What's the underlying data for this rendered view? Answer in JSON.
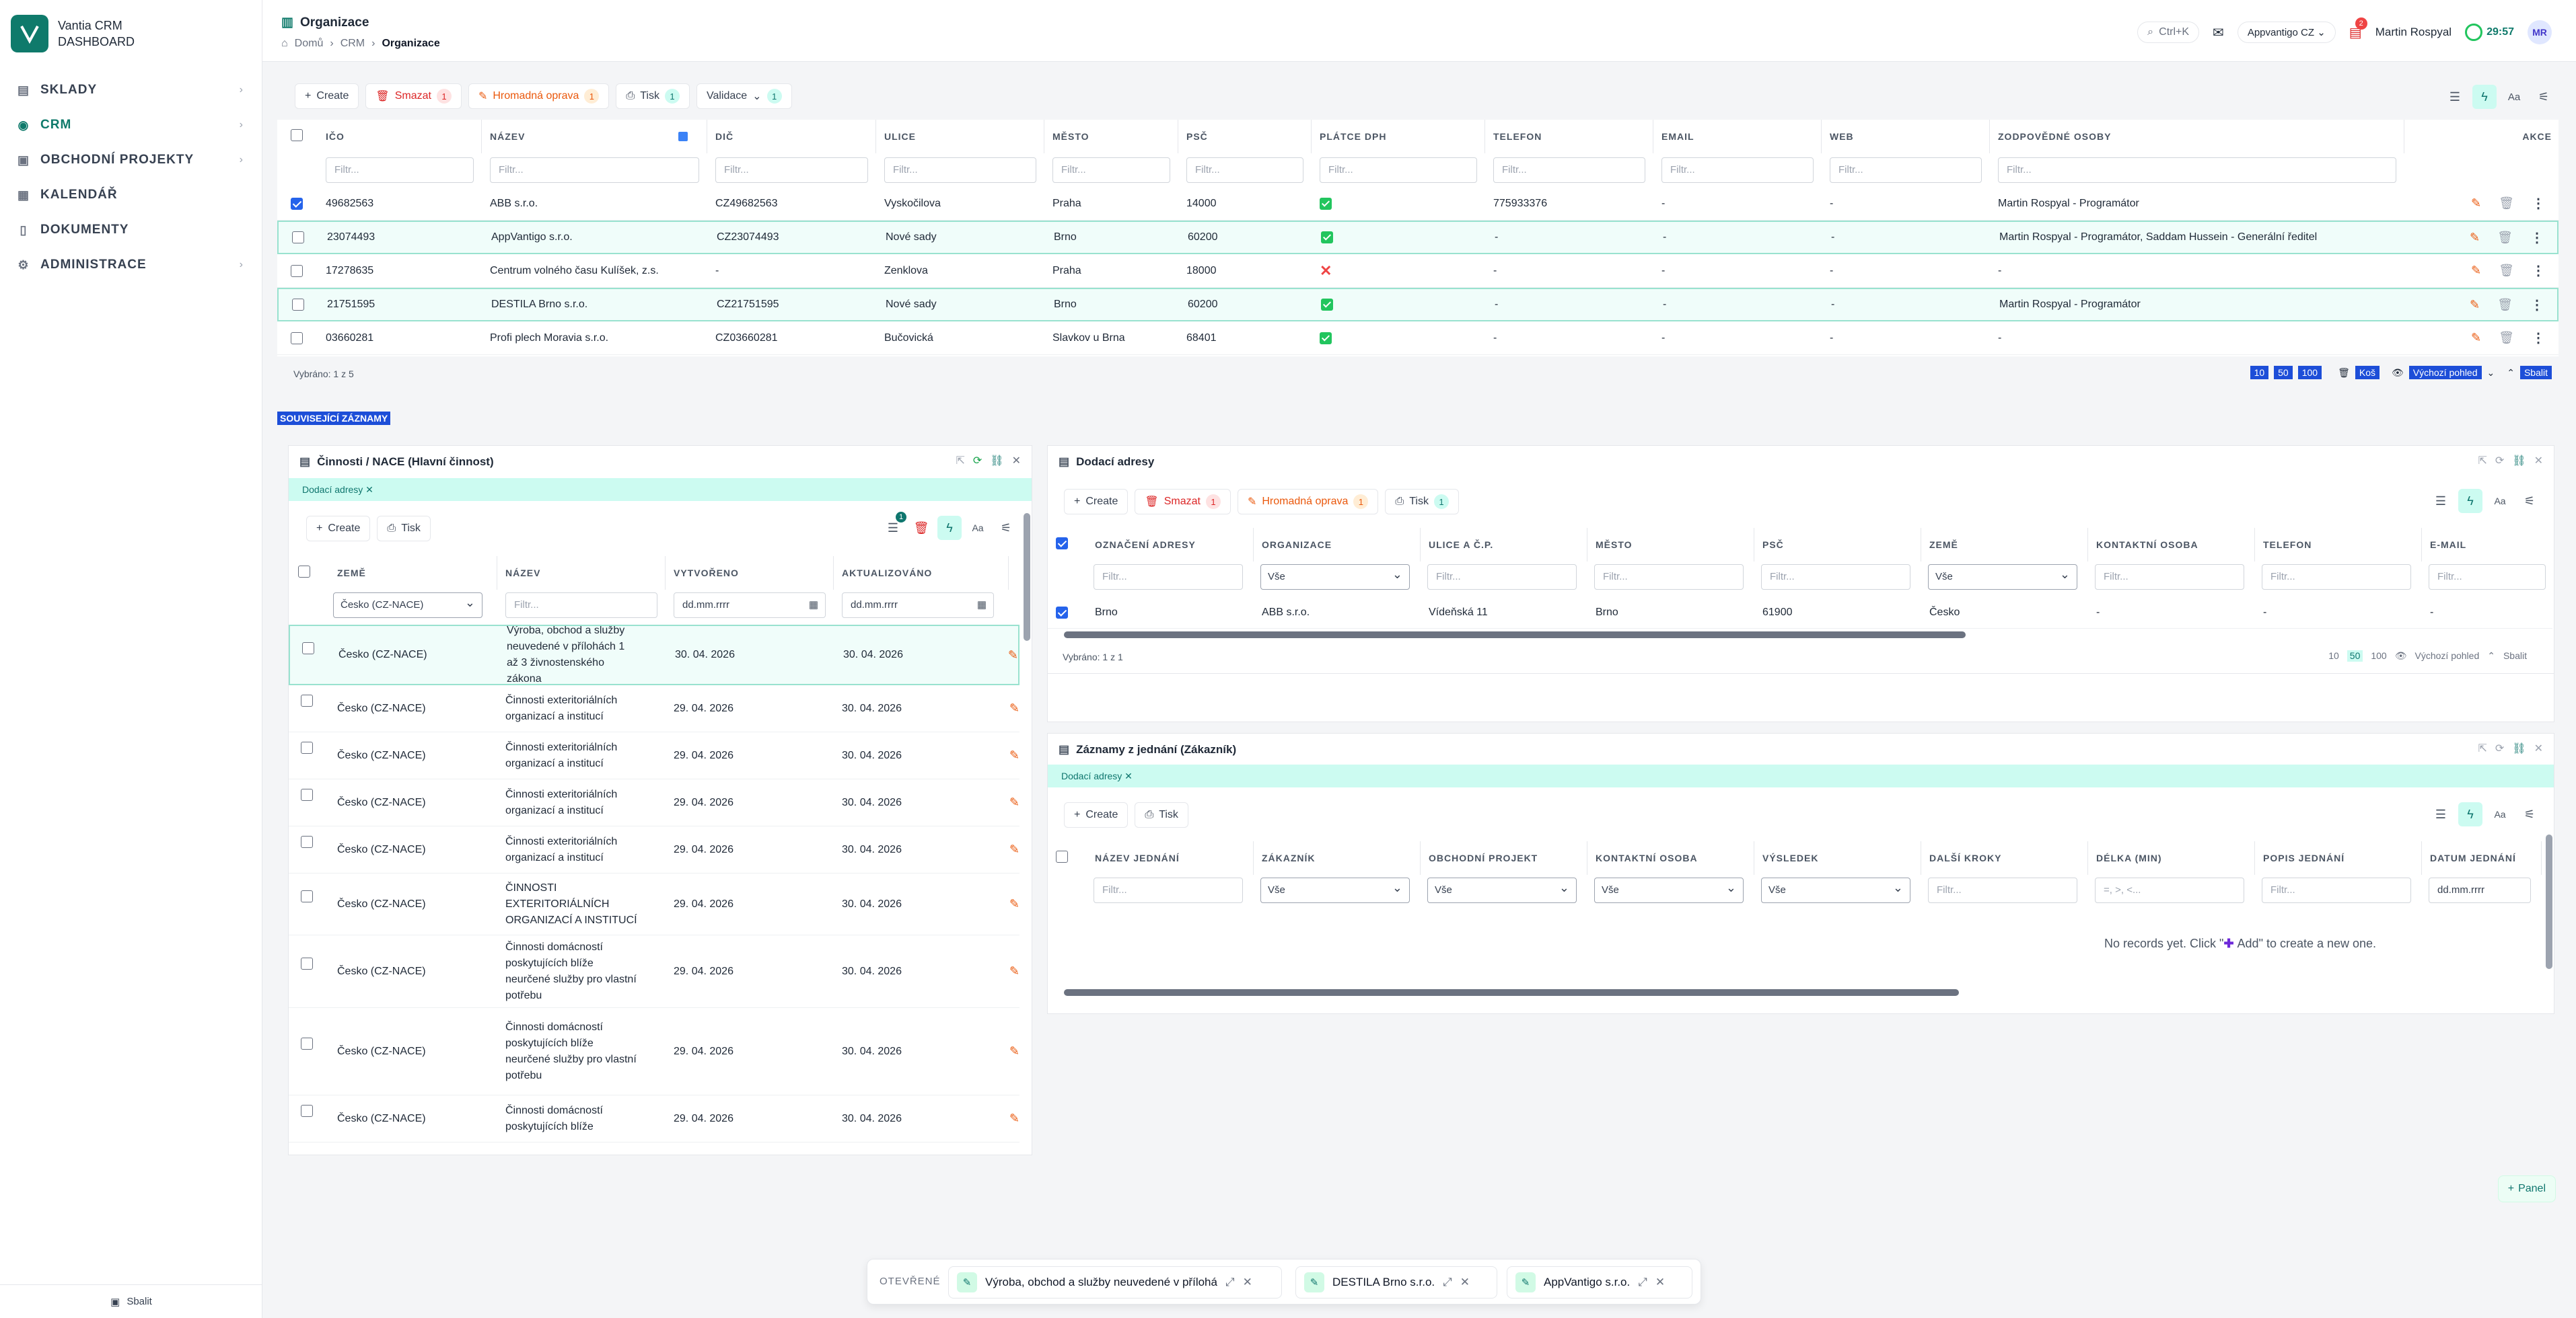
{
  "app": {
    "name": "Vantia CRM",
    "sub": "DASHBOARD"
  },
  "sidebar": {
    "items": [
      {
        "label": "SKLADY",
        "icon": "warehouse-icon",
        "glyph": "▤"
      },
      {
        "label": "CRM",
        "icon": "crm-icon",
        "glyph": "◉"
      },
      {
        "label": "OBCHODNÍ PROJEKTY",
        "icon": "briefcase-icon",
        "glyph": "▣"
      },
      {
        "label": "KALENDÁŘ",
        "icon": "calendar-icon",
        "glyph": "▦"
      },
      {
        "label": "DOKUMENTY",
        "icon": "document-icon",
        "glyph": "▯"
      },
      {
        "label": "ADMINISTRACE",
        "icon": "gear-icon",
        "glyph": "⚙"
      }
    ],
    "collapse": "Sbalit"
  },
  "header": {
    "title": "Organizace",
    "crumbs": [
      "Domů",
      "CRM",
      "Organizace"
    ],
    "search_kbd": "Ctrl+K",
    "tenant": "Appvantigo CZ",
    "notif_count": "2",
    "user": "Martin Rospyal",
    "timer": "29:57",
    "initials": "MR"
  },
  "toolbar": {
    "create": "Create",
    "delete": "Smazat",
    "delete_count": "1",
    "bulk": "Hromadná oprava",
    "bulk_count": "1",
    "print": "Tisk",
    "print_count": "1",
    "validation": "Validace",
    "validation_count": "1"
  },
  "grid": {
    "columns": [
      "IČO",
      "NÁZEV",
      "DIČ",
      "ULICE",
      "MĚSTO",
      "PSČ",
      "PLÁTCE DPH",
      "TELEFON",
      "EMAIL",
      "WEB",
      "ZODPOVĚDNÉ OSOBY"
    ],
    "actions_label": "AKCE",
    "filter_placeholder": "Filtr...",
    "rows": [
      {
        "ico": "49682563",
        "nazev": "ABB s.r.o.",
        "dic": "CZ49682563",
        "ulice": "Vyskočilova",
        "mesto": "Praha",
        "psc": "14000",
        "dph": true,
        "tel": "775933376",
        "email": "-",
        "web": "-",
        "osoby": "Martin Rospyal - Programátor"
      },
      {
        "ico": "23074493",
        "nazev": "AppVantigo s.r.o.",
        "dic": "CZ23074493",
        "ulice": "Nové sady",
        "mesto": "Brno",
        "psc": "60200",
        "dph": true,
        "tel": "-",
        "email": "-",
        "web": "-",
        "osoby": "Martin Rospyal - Programátor, Saddam Hussein - Generální ředitel"
      },
      {
        "ico": "17278635",
        "nazev": "Centrum volného času Kulíšek, z.s.",
        "dic": "-",
        "ulice": "Zenklova",
        "mesto": "Praha",
        "psc": "18000",
        "dph": false,
        "tel": "-",
        "email": "-",
        "web": "-",
        "osoby": "-"
      },
      {
        "ico": "21751595",
        "nazev": "DESTILA Brno s.r.o.",
        "dic": "CZ21751595",
        "ulice": "Nové sady",
        "mesto": "Brno",
        "psc": "60200",
        "dph": true,
        "tel": "-",
        "email": "-",
        "web": "-",
        "osoby": "Martin Rospyal - Programátor"
      },
      {
        "ico": "03660281",
        "nazev": "Profi plech Moravia s.r.o.",
        "dic": "CZ03660281",
        "ulice": "Bučovická",
        "mesto": "Slavkov u Brna",
        "psc": "68401",
        "dph": true,
        "tel": "-",
        "email": "-",
        "web": "-",
        "osoby": "-"
      }
    ],
    "selected": "Vybráno: 1 z 5",
    "pages": [
      "10",
      "50",
      "100"
    ],
    "trash": "Koš",
    "view": "Výchozí pohled",
    "collapse": "Sbalit"
  },
  "related_label": "SOUVISEJÍCÍ ZÁZNAMY",
  "nace": {
    "title": "Činnosti / NACE (Hlavní činnost)",
    "chip": "Dodací adresy",
    "create": "Create",
    "print": "Tisk",
    "filter_badge": "1",
    "columns": [
      "ZEMĚ",
      "NÁZEV",
      "VYTVOŘENO",
      "AKTUALIZOVÁNO"
    ],
    "country_filter": "Česko (CZ-NACE)",
    "filter_placeholder": "Filtr...",
    "date_placeholder": "dd.mm.rrrr",
    "rows": [
      {
        "zeme": "Česko (CZ-NACE)",
        "lines": [
          "Výroba, obchod a služby",
          "neuvedené v přílohách 1",
          "až 3 živnostenského",
          "zákona"
        ],
        "vytvoreno": "30. 04. 2026",
        "aktualizovano": "30. 04. 2026"
      },
      {
        "zeme": "Česko (CZ-NACE)",
        "lines": [
          "Činnosti exteritoriálních",
          "organizací a institucí"
        ],
        "vytvoreno": "29. 04. 2026",
        "aktualizovano": "30. 04. 2026"
      },
      {
        "zeme": "Česko (CZ-NACE)",
        "lines": [
          "Činnosti exteritoriálních",
          "organizací a institucí"
        ],
        "vytvoreno": "29. 04. 2026",
        "aktualizovano": "30. 04. 2026"
      },
      {
        "zeme": "Česko (CZ-NACE)",
        "lines": [
          "Činnosti exteritoriálních",
          "organizací a institucí"
        ],
        "vytvoreno": "29. 04. 2026",
        "aktualizovano": "30. 04. 2026"
      },
      {
        "zeme": "Česko (CZ-NACE)",
        "lines": [
          "Činnosti exteritoriálních",
          "organizací a institucí"
        ],
        "vytvoreno": "29. 04. 2026",
        "aktualizovano": "30. 04. 2026"
      },
      {
        "zeme": "Česko (CZ-NACE)",
        "lines": [
          "ČINNOSTI",
          "EXTERITORIÁLNÍCH",
          "ORGANIZACÍ A INSTITUCÍ"
        ],
        "vytvoreno": "29. 04. 2026",
        "aktualizovano": "30. 04. 2026"
      },
      {
        "zeme": "Česko (CZ-NACE)",
        "lines": [
          "Činnosti domácností",
          "poskytujících blíže",
          "neurčené služby pro vlastní",
          "potřebu"
        ],
        "vytvoreno": "29. 04. 2026",
        "aktualizovano": "30. 04. 2026"
      },
      {
        "zeme": "Česko (CZ-NACE)",
        "lines": [
          "Činnosti domácností",
          "poskytujících blíže",
          "neurčené služby pro vlastní",
          "potřebu"
        ],
        "vytvoreno": "29. 04. 2026",
        "aktualizovano": "30. 04. 2026"
      },
      {
        "zeme": "Česko (CZ-NACE)",
        "lines": [
          "Činnosti domácností",
          "poskytujících blíže"
        ],
        "vytvoreno": "29. 04. 2026",
        "aktualizovano": "30. 04. 2026"
      }
    ]
  },
  "addresses": {
    "title": "Dodací adresy",
    "create": "Create",
    "delete": "Smazat",
    "delete_count": "1",
    "bulk": "Hromadná oprava",
    "bulk_count": "1",
    "print": "Tisk",
    "print_count": "1",
    "columns": [
      "OZNAČENÍ ADRESY",
      "ORGANIZACE",
      "ULICE A Č.P.",
      "MĚSTO",
      "PSČ",
      "ZEMĚ",
      "KONTAKTNÍ OSOBA",
      "TELEFON",
      "E-MAIL"
    ],
    "all": "Vše",
    "filter_placeholder": "Filtr...",
    "row": [
      "Brno",
      "ABB s.r.o.",
      "Vídeňská 11",
      "Brno",
      "61900",
      "Česko",
      "-",
      "-",
      "-"
    ],
    "selected": "Vybráno: 1 z 1",
    "pages": [
      "10",
      "50",
      "100"
    ],
    "view": "Výchozí pohled",
    "collapse": "Sbalit"
  },
  "meetings": {
    "title": "Záznamy z jednání (Zákazník)",
    "chip": "Dodací adresy",
    "create": "Create",
    "print": "Tisk",
    "columns": [
      "NÁZEV JEDNÁNÍ",
      "ZÁKAZNÍK",
      "OBCHODNÍ PROJEKT",
      "KONTAKTNÍ OSOBA",
      "VÝSLEDEK",
      "DALŠÍ KROKY",
      "DÉLKA (MIN)",
      "POPIS JEDNÁNÍ",
      "DATUM JEDNÁNÍ"
    ],
    "all": "Vše",
    "filter_placeholder": "Filtr...",
    "range_placeholder": "=, >, <...",
    "date_placeholder": "dd.mm.rrrr",
    "empty_pre": "No records yet. Click \"",
    "empty_add": "Add",
    "empty_post": "\" to create a new one."
  },
  "add_panel": "Panel",
  "dock": {
    "label": "OTEVŘENÉ",
    "items": [
      "Výroba, obchod a služby neuvedené v přílohá",
      "DESTILA Brno s.r.o.",
      "AppVantigo s.r.o."
    ]
  },
  "colors": {
    "accent": "#0f7a6b",
    "danger": "#dc2626",
    "warning": "#ea580c"
  }
}
